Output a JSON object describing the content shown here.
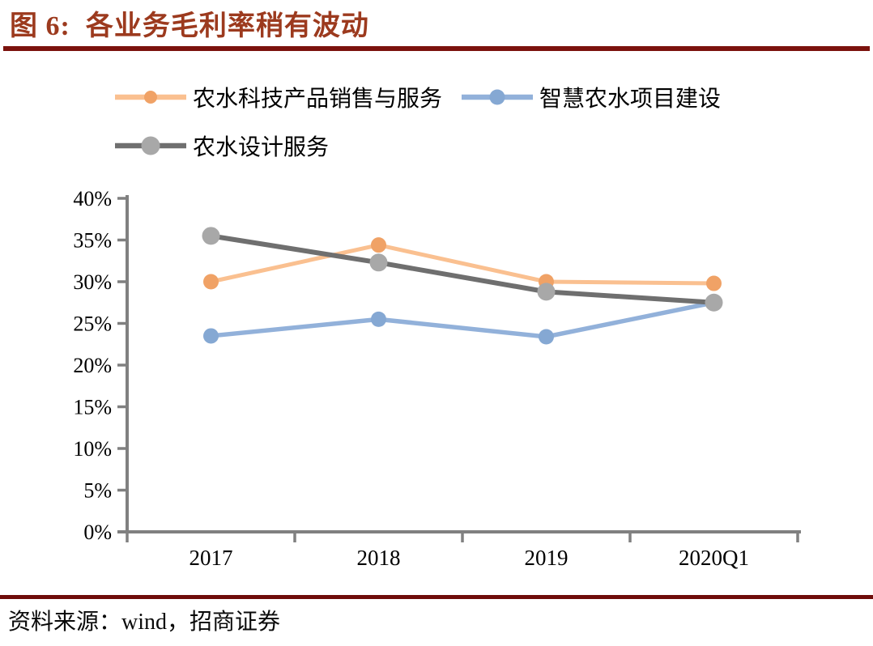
{
  "header": {
    "title": "图 6:  各业务毛利率稍有波动"
  },
  "footer": {
    "source_label": "资料来源：wind，招商证券"
  },
  "colors": {
    "title_text": "#9C3A1E",
    "title_rule": "#7B120D",
    "footer_rule": "#6E0C0A",
    "axis": "#808080",
    "tick_label": "#000000"
  },
  "chart_data": {
    "type": "line",
    "title": "各业务毛利率稍有波动",
    "figure_label": "图 6",
    "categories": [
      "2017",
      "2018",
      "2019",
      "2020Q1"
    ],
    "series": [
      {
        "name": "农水科技产品销售与服务",
        "values": [
          30.0,
          34.4,
          30.0,
          29.8
        ],
        "line_color": "#FAC090",
        "marker_color": "#F0A266",
        "line_width": 5,
        "marker_r": 9.5,
        "legend_marker_r": 8
      },
      {
        "name": "智慧农水项目建设",
        "values": [
          23.5,
          25.5,
          23.4,
          27.5
        ],
        "line_color": "#92B1DA",
        "marker_color": "#85A8D3",
        "line_width": 5.5,
        "marker_r": 9.5,
        "legend_marker_r": 9.5
      },
      {
        "name": "农水设计服务",
        "values": [
          35.5,
          32.3,
          28.8,
          27.5
        ],
        "line_color": "#6F6F6F",
        "marker_color": "#A8A8A8",
        "line_width": 6,
        "marker_r": 11,
        "legend_marker_r": 11.5
      }
    ],
    "xlabel": "",
    "ylabel": "",
    "ylim": [
      0,
      40
    ],
    "ytick_step": 5,
    "ytick_labels": [
      "0%",
      "5%",
      "10%",
      "15%",
      "20%",
      "25%",
      "30%",
      "35%",
      "40%"
    ],
    "grid": false,
    "legend_position": "top",
    "legend_rows": [
      [
        0,
        1
      ],
      [
        2
      ]
    ]
  }
}
